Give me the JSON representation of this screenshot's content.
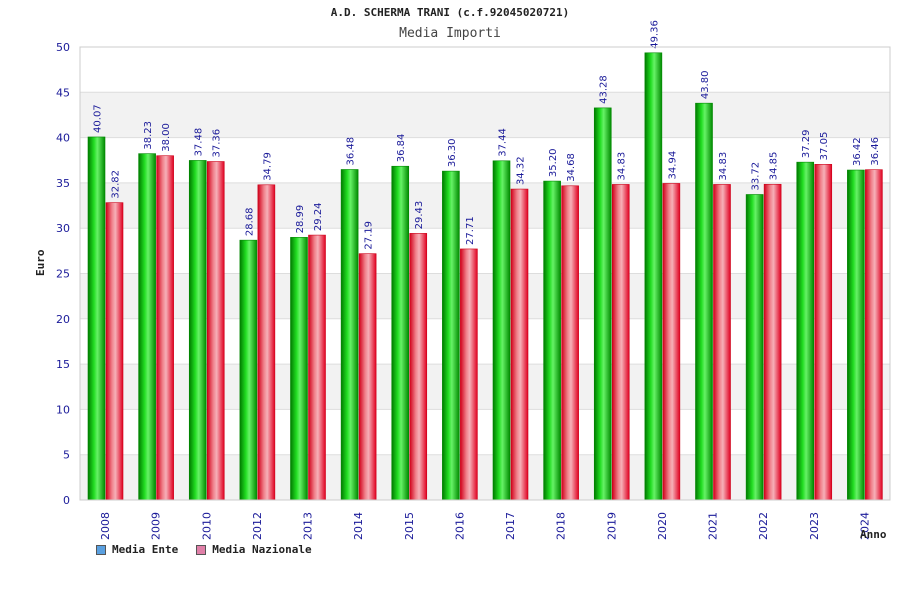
{
  "chart_data": {
    "type": "bar",
    "title": "A.D. SCHERMA TRANI (c.f.92045020721)",
    "subtitle": "Media Importi",
    "ylabel": "Euro",
    "xlabel": "Anno",
    "ylim": [
      0,
      50
    ],
    "yticks": [
      "0",
      "5",
      "10",
      "15",
      "20",
      "25",
      "30",
      "35",
      "40",
      "45",
      "50"
    ],
    "categories": [
      "2008",
      "2009",
      "2010",
      "2012",
      "2013",
      "2014",
      "2015",
      "2016",
      "2017",
      "2018",
      "2019",
      "2020",
      "2021",
      "2022",
      "2023",
      "2024"
    ],
    "series": [
      {
        "name": "Media Ente",
        "color": "#00b000",
        "values": [
          40.07,
          38.23,
          37.48,
          28.68,
          28.99,
          36.48,
          36.84,
          36.3,
          37.44,
          35.2,
          43.28,
          49.36,
          43.8,
          33.72,
          37.29,
          36.42
        ],
        "labels": [
          "40.07",
          "38.23",
          "37.48",
          "28.68",
          "28.99",
          "36.48",
          "36.84",
          "36.30",
          "37.44",
          "35.20",
          "43.28",
          "49.36",
          "43.80",
          "33.72",
          "37.29",
          "36.42"
        ]
      },
      {
        "name": "Media Nazionale",
        "color": "#e8001c",
        "values": [
          32.82,
          38.0,
          37.36,
          34.79,
          29.24,
          27.19,
          29.43,
          27.71,
          34.32,
          34.68,
          34.83,
          34.94,
          34.83,
          34.85,
          37.05,
          36.46
        ],
        "labels": [
          "32.82",
          "38.00",
          "37.36",
          "34.79",
          "29.24",
          "27.19",
          "29.43",
          "27.71",
          "34.32",
          "34.68",
          "34.83",
          "34.94",
          "34.83",
          "34.85",
          "37.05",
          "36.46"
        ]
      }
    ],
    "legend": {
      "position": "bottom-left",
      "items": [
        {
          "label": "Media Ente",
          "color": "#5aa0e0"
        },
        {
          "label": "Media Nazionale",
          "color": "#e080a8"
        }
      ]
    },
    "grid": true
  }
}
